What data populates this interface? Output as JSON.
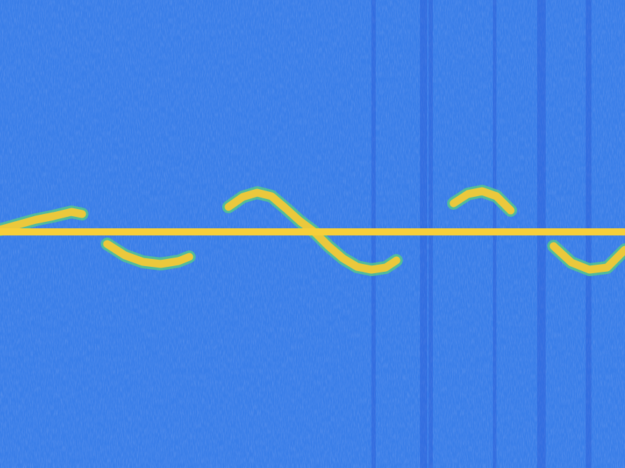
{
  "chart_data": {
    "type": "line",
    "x": [
      0,
      2.5,
      5,
      7.5,
      10,
      11.5,
      13,
      15,
      17.5,
      20,
      22.5,
      25,
      26.5,
      29,
      32,
      34,
      36,
      38,
      40,
      42,
      44,
      46,
      48,
      50,
      52,
      54,
      55.5,
      58,
      63.5,
      65.5,
      67.5,
      69.5,
      71.5,
      73,
      77.5,
      80,
      82.5,
      85,
      87.5
    ],
    "series": [
      {
        "color": "#f7cf3a",
        "values": [
          0.3,
          0.3,
          0.3,
          0.3,
          0.3,
          0.3,
          0.3,
          0.3,
          0.3,
          0.3,
          0.3,
          0.3,
          0.3,
          0.3,
          0.3,
          0.3,
          0.3,
          0.3,
          0.3,
          0.3,
          0.3,
          0.3,
          0.3,
          0.3,
          0.3,
          0.3,
          0.3,
          0.3,
          0.3,
          0.3,
          0.3,
          0.3,
          0.3,
          0.3,
          0.3,
          0.3,
          0.3,
          0.3,
          0.3
        ]
      },
      {
        "color": "#ebc83c",
        "values": [
          0.6,
          1.3,
          2.0,
          2.5,
          3.1,
          2.8,
          null,
          -1.4,
          -3.0,
          -3.9,
          -4.2,
          -3.8,
          -3.2,
          null,
          3.8,
          5.2,
          5.8,
          5.3,
          3.6,
          1.8,
          0.3,
          -1.7,
          -3.4,
          -4.6,
          -5.0,
          -4.7,
          -3.7,
          null,
          4.3,
          5.6,
          6.0,
          5.3,
          3.3,
          null,
          -1.7,
          -4.0,
          -5.0,
          -4.7,
          -2.2
        ]
      }
    ],
    "xlim": [
      0,
      87.5
    ],
    "ylim": [
      -32.8,
      32.8
    ],
    "grid": false,
    "tick_labels": false
  }
}
